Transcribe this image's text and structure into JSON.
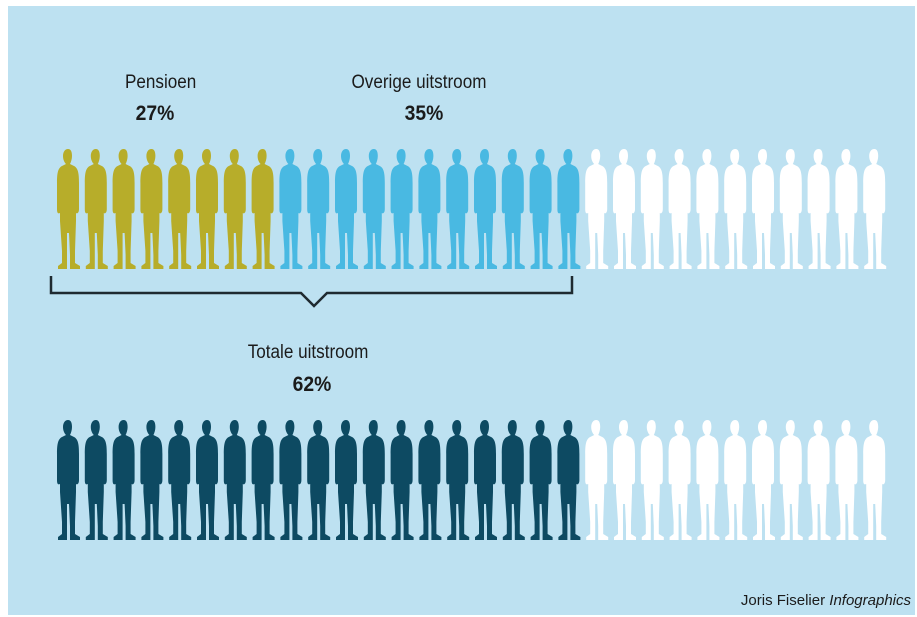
{
  "chart_data": {
    "type": "pictogram",
    "total_figures": 30,
    "rows": [
      {
        "segments": [
          {
            "name": "Pensioen",
            "percent": 27,
            "label": "27%",
            "color": "#b7ad2a"
          },
          {
            "name": "Overige uitstroom",
            "percent": 35,
            "label": "35%",
            "color": "#49b9e2"
          }
        ],
        "remainder_color": "#ffffff"
      },
      {
        "segments": [
          {
            "name": "Totale uitstroom",
            "percent": 62,
            "label": "62%",
            "color": "#0d4a62"
          }
        ],
        "remainder_color": "#ffffff"
      }
    ]
  },
  "credit": {
    "author": "Joris Fiselier",
    "brand": "Infographics"
  },
  "colors": {
    "background": "#bde1f1",
    "bracket": "#1f2a30"
  }
}
